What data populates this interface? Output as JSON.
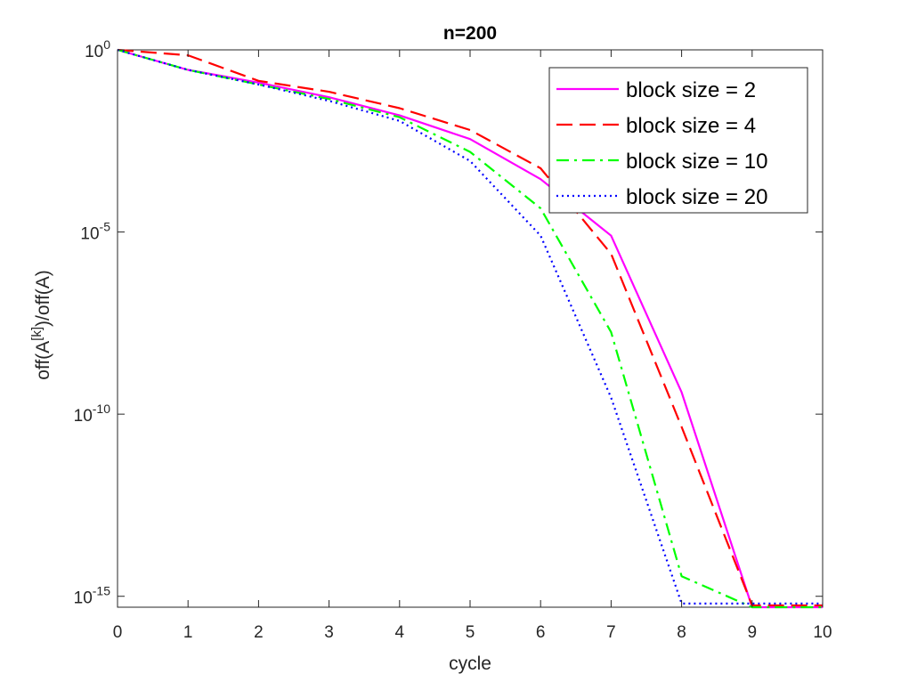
{
  "chart_data": {
    "type": "line",
    "title": "n=200",
    "xlabel": "cycle",
    "ylabel": "off(A[k])/off(A)",
    "ylabel_parts": {
      "pre": "off(A",
      "sup": "[k]",
      "post": ")/off(A)"
    },
    "xlim": [
      0,
      10
    ],
    "ylim_log10": [
      -15.3,
      0
    ],
    "yscale": "log",
    "grid": false,
    "legend_position": "top-right",
    "x_ticks": [
      0,
      1,
      2,
      3,
      4,
      5,
      6,
      7,
      8,
      9,
      10
    ],
    "y_ticks": [
      {
        "base": "10",
        "exp": "0",
        "log10": 0
      },
      {
        "base": "10",
        "exp": "-5",
        "log10": -5
      },
      {
        "base": "10",
        "exp": "-10",
        "log10": -10
      },
      {
        "base": "10",
        "exp": "-15",
        "log10": -15
      }
    ],
    "x": [
      0,
      1,
      2,
      3,
      4,
      5,
      6,
      7,
      8,
      9,
      10
    ],
    "series": [
      {
        "name": "block size = 2",
        "color": "#ff00ff",
        "dash": "solid",
        "log10_values": [
          0,
          -0.55,
          -0.9,
          -1.3,
          -1.8,
          -2.45,
          -3.55,
          -5.1,
          -9.4,
          -15.3,
          -15.3
        ]
      },
      {
        "name": "block size = 4",
        "color": "#ff0000",
        "dash": "dashed",
        "log10_values": [
          0,
          -0.15,
          -0.85,
          -1.15,
          -1.6,
          -2.2,
          -3.25,
          -5.6,
          -10.35,
          -15.25,
          -15.25
        ]
      },
      {
        "name": "block size = 10",
        "color": "#00ff00",
        "dash": "dashdot",
        "log10_values": [
          0,
          -0.55,
          -0.95,
          -1.35,
          -1.85,
          -2.8,
          -4.35,
          -7.75,
          -14.45,
          -15.3,
          -15.3
        ]
      },
      {
        "name": "block size = 20",
        "color": "#0000ff",
        "dash": "dotted",
        "log10_values": [
          0,
          -0.55,
          -0.95,
          -1.4,
          -1.95,
          -3.05,
          -5.1,
          -9.55,
          -15.2,
          -15.2,
          -15.2
        ]
      }
    ]
  }
}
